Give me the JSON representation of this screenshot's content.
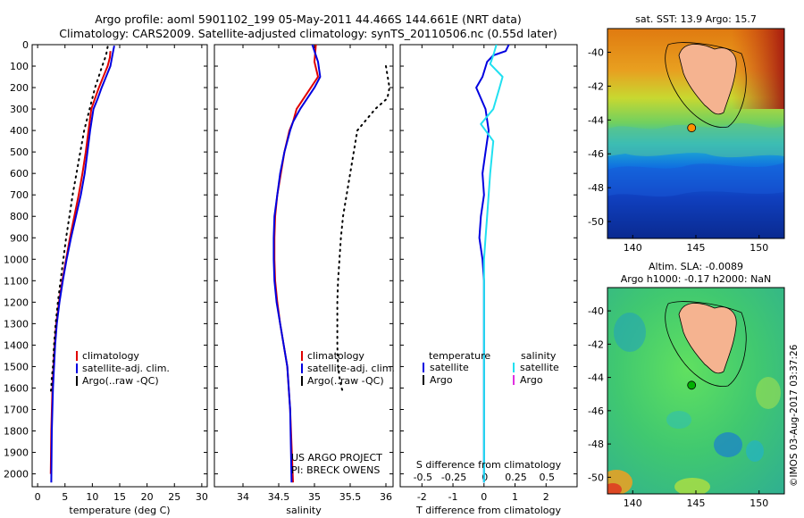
{
  "header": {
    "line1": "Argo profile: aoml 5901102_199 05-May-2011 44.466S 144.661E (NRT data)",
    "line2": "Climatology: CARS2009. Satellite-adjusted climatology: synTS_20110506.nc (0.55d later)"
  },
  "watermark": "©IMOS 03-Aug-2017 03:37:26",
  "chart_data": [
    {
      "type": "line",
      "id": "temperature",
      "xlabel": "temperature (deg C)",
      "ylabel": "",
      "xlim": [
        -1,
        31
      ],
      "ylim": [
        2060,
        0
      ],
      "xticks": [
        0,
        5,
        10,
        15,
        20,
        25,
        30
      ],
      "yticks": [
        0,
        100,
        200,
        300,
        400,
        500,
        600,
        700,
        800,
        900,
        1000,
        1100,
        1200,
        1300,
        1400,
        1500,
        1600,
        1700,
        1800,
        1900,
        2000
      ],
      "legend": [
        "climatology",
        "satellite-adj. clim.",
        "Argo(..raw -QC)"
      ],
      "series": [
        {
          "name": "climatology",
          "color": "#e00000",
          "style": "solid",
          "x": [
            13.3,
            13.2,
            12.8,
            12.0,
            11.2,
            10.5,
            9.8,
            9.3,
            8.8,
            8.2,
            7.5,
            6.7,
            5.9,
            5.2,
            4.5,
            3.9,
            3.4,
            3.1,
            2.9,
            2.7,
            2.5,
            2.4
          ],
          "y": [
            30,
            60,
            100,
            150,
            200,
            250,
            300,
            400,
            500,
            600,
            700,
            800,
            900,
            1000,
            1100,
            1200,
            1300,
            1400,
            1500,
            1600,
            1800,
            2000
          ]
        },
        {
          "name": "satellite-adj. clim.",
          "color": "#0000e0",
          "style": "solid",
          "x": [
            14.0,
            13.8,
            13.3,
            12.5,
            11.7,
            11.0,
            10.2,
            9.6,
            9.1,
            8.6,
            7.9,
            7.0,
            6.1,
            5.3,
            4.6,
            4.0,
            3.5,
            3.2,
            3.0,
            2.8,
            2.6,
            2.5
          ],
          "y": [
            5,
            30,
            100,
            150,
            200,
            250,
            300,
            400,
            500,
            600,
            700,
            800,
            900,
            1000,
            1100,
            1200,
            1300,
            1400,
            1500,
            1600,
            1800,
            2040
          ]
        },
        {
          "name": "Argo(..raw -QC)",
          "color": "#000000",
          "style": "dotted",
          "x": [
            12.8,
            12.5,
            11.8,
            10.5,
            9.5,
            8.5,
            7.8,
            7.1,
            6.4,
            5.8,
            5.2,
            4.7,
            4.2,
            3.7,
            3.3,
            3.0,
            2.8,
            2.6,
            2.5,
            2.4
          ],
          "y": [
            10,
            50,
            100,
            200,
            300,
            400,
            500,
            600,
            700,
            800,
            900,
            1000,
            1100,
            1200,
            1300,
            1400,
            1500,
            1550,
            1600,
            1620
          ]
        }
      ]
    },
    {
      "type": "line",
      "id": "salinity",
      "xlabel": "salinity",
      "ylabel": "",
      "xlim": [
        33.6,
        36.1
      ],
      "ylim": [
        2060,
        0
      ],
      "xticks": [
        34,
        34.5,
        35,
        35.5,
        36
      ],
      "xticklabels": [
        "34",
        "34.5",
        "35",
        "35.5",
        "36"
      ],
      "legend": [
        "climatology",
        "satellite-adj. clim.",
        "Argo(..raw -QC)"
      ],
      "annotation": [
        "US ARGO PROJECT",
        "PI: BRECK OWENS"
      ],
      "series": [
        {
          "name": "climatology",
          "color": "#e00000",
          "style": "solid",
          "x": [
            35.02,
            35.0,
            35.05,
            34.95,
            34.85,
            34.75,
            34.7,
            34.65,
            34.58,
            34.53,
            34.48,
            34.45,
            34.44,
            34.44,
            34.45,
            34.48,
            34.52,
            34.57,
            34.62,
            34.66,
            34.7
          ],
          "y": [
            0,
            80,
            150,
            200,
            250,
            300,
            360,
            400,
            500,
            600,
            700,
            800,
            900,
            1000,
            1100,
            1200,
            1300,
            1400,
            1500,
            1700,
            2040
          ]
        },
        {
          "name": "satellite-adj. clim.",
          "color": "#0000e0",
          "style": "solid",
          "x": [
            34.97,
            35.05,
            35.08,
            35.0,
            34.9,
            34.8,
            34.7,
            34.66,
            34.58,
            34.52,
            34.48,
            34.44,
            34.43,
            34.43,
            34.44,
            34.47,
            34.52,
            34.57,
            34.62,
            34.66,
            34.68
          ],
          "y": [
            0,
            80,
            150,
            200,
            250,
            300,
            360,
            400,
            500,
            600,
            700,
            800,
            900,
            1000,
            1100,
            1200,
            1300,
            1400,
            1500,
            1700,
            2040
          ]
        },
        {
          "name": "Argo(..raw -QC)",
          "color": "#000000",
          "style": "dotted",
          "x": [
            36.0,
            36.05,
            36.02,
            35.85,
            35.6,
            35.55,
            35.5,
            35.45,
            35.4,
            35.37,
            35.35,
            35.33,
            35.32,
            35.32,
            35.32,
            35.33,
            35.35,
            35.38,
            35.4
          ],
          "y": [
            100,
            200,
            250,
            300,
            400,
            500,
            600,
            700,
            800,
            900,
            1000,
            1100,
            1200,
            1300,
            1400,
            1500,
            1550,
            1600,
            1620
          ]
        }
      ]
    },
    {
      "type": "line",
      "id": "difference",
      "xlabel": "T difference from climatology",
      "top_xlabel": "S difference from climatology",
      "ylabel": "",
      "xlim": [
        -2.7,
        3.0
      ],
      "ylim": [
        2060,
        0
      ],
      "xticks": [
        -2,
        -1,
        0,
        1,
        2
      ],
      "top_xticklabels": [
        "-0.5",
        "-0.25",
        "0",
        "0.25",
        "0.5"
      ],
      "legend_title_left": "temperature",
      "legend_title_right": "salinity",
      "legend_left": [
        "satellite",
        "Argo"
      ],
      "legend_right": [
        "satellite",
        "Argo"
      ],
      "series": [
        {
          "name": "temperature satellite",
          "color": "#0000e0",
          "style": "solid",
          "x": [
            0.8,
            0.7,
            0.3,
            0.1,
            -0.05,
            -0.25,
            -0.1,
            0.05,
            0.15,
            0.05,
            -0.05,
            0.0,
            -0.1,
            -0.15,
            -0.05,
            0.0,
            0.0,
            0.0,
            0.0
          ],
          "y": [
            0,
            30,
            50,
            80,
            150,
            200,
            250,
            300,
            400,
            500,
            600,
            700,
            800,
            900,
            1000,
            1100,
            1300,
            1600,
            2040
          ]
        },
        {
          "name": "salinity satellite",
          "color": "#20e0f0",
          "style": "solid",
          "x": [
            0.4,
            0.3,
            0.2,
            0.6,
            0.5,
            0.4,
            0.3,
            -0.1,
            0.3,
            0.2,
            0.15,
            0.1,
            0.05,
            0.0,
            0.0,
            0.0,
            0.0,
            0.0
          ],
          "y": [
            0,
            50,
            90,
            150,
            200,
            250,
            300,
            370,
            450,
            600,
            700,
            800,
            900,
            1000,
            1100,
            1300,
            1600,
            2040
          ]
        }
      ]
    },
    {
      "type": "heatmap",
      "id": "sst-map",
      "title": "sat. SST: 13.9 Argo: 15.7",
      "xticks": [
        140,
        145,
        150
      ],
      "yticks": [
        -40,
        -42,
        -44,
        -46,
        -48,
        -50
      ],
      "xlim": [
        138,
        152
      ],
      "ylim": [
        -51,
        -38.6
      ],
      "marker": {
        "lon": 144.661,
        "lat": -44.466,
        "color": "#ff9000"
      }
    },
    {
      "type": "heatmap",
      "id": "sla-map",
      "title": "Altim. SLA: -0.0089",
      "subtitle": "Argo h1000: -0.17 h2000: NaN",
      "xticks": [
        140,
        145,
        150
      ],
      "yticks": [
        -40,
        -42,
        -44,
        -46,
        -48,
        -50
      ],
      "xlim": [
        138,
        152
      ],
      "ylim": [
        -51,
        -38.6
      ],
      "marker": {
        "lon": 144.661,
        "lat": -44.466,
        "color": "#00b000"
      }
    }
  ]
}
